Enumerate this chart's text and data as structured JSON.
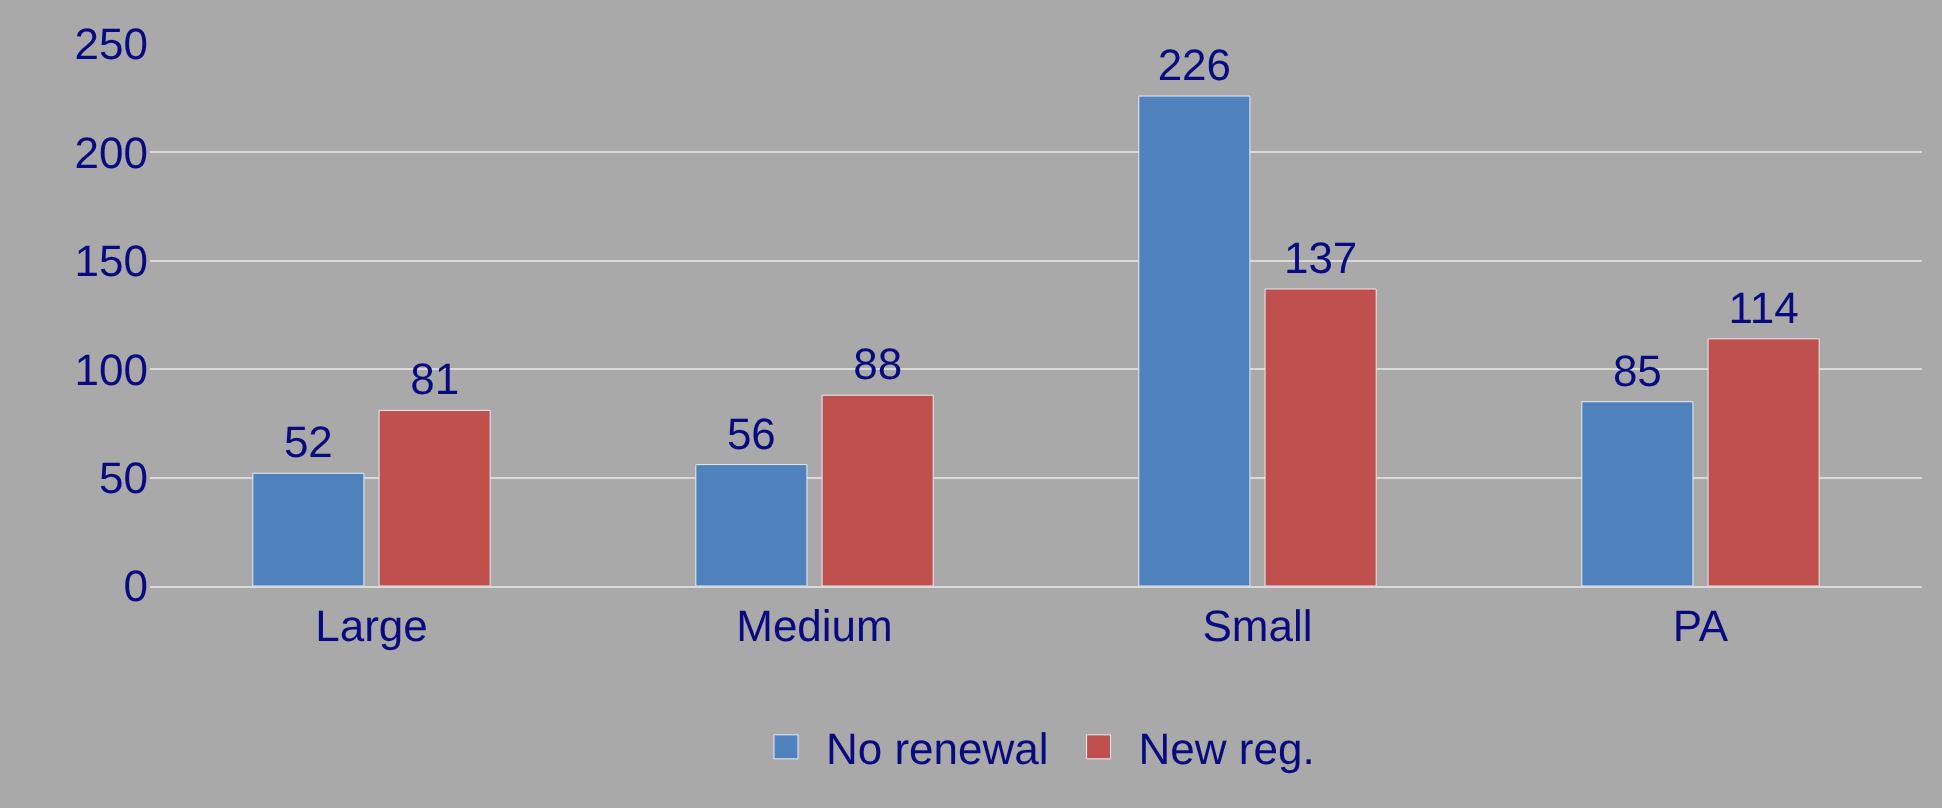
{
  "chart_data": {
    "type": "bar",
    "categories": [
      "Large",
      "Medium",
      "Small",
      "PA"
    ],
    "series": [
      {
        "name": "No renewal",
        "color": "#4f81bd",
        "values": [
          52,
          56,
          226,
          85
        ]
      },
      {
        "name": "New reg.",
        "color": "#c0504d",
        "values": [
          81,
          88,
          137,
          114
        ]
      }
    ],
    "ylim": [
      0,
      250
    ],
    "yticks": [
      0,
      50,
      100,
      150,
      200,
      250
    ],
    "grid": "y",
    "legend": "bottom",
    "data_labels": true
  }
}
